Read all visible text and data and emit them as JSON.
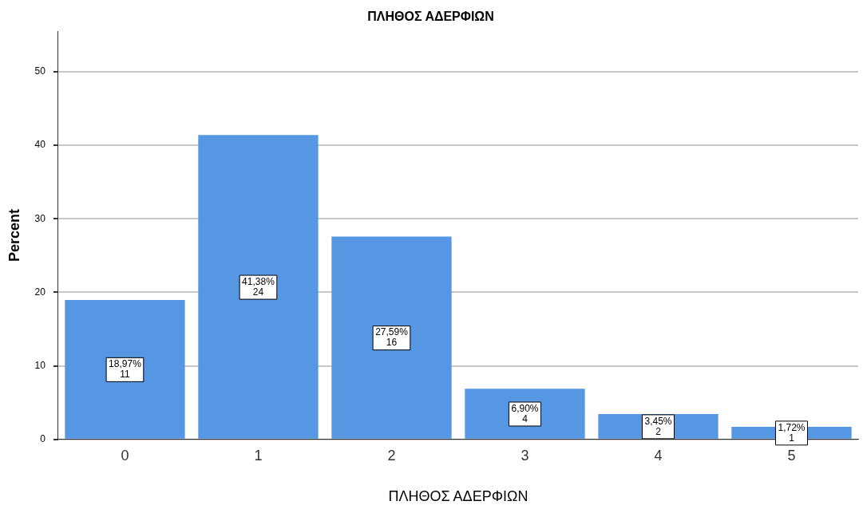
{
  "chart_data": {
    "type": "bar",
    "title": "ΠΛΗΘΟΣ ΑΔΕΡΦΙΩΝ",
    "xlabel": "ΠΛΗΘΟΣ ΑΔΕΡΦΙΩΝ",
    "ylabel": "Percent",
    "categories": [
      "0",
      "1",
      "2",
      "3",
      "4",
      "5"
    ],
    "values": [
      18.97,
      41.38,
      27.59,
      6.9,
      3.45,
      1.72
    ],
    "value_labels": [
      "18,97%\n11",
      "41,38%\n24",
      "27,59%\n16",
      "6,90%\n4",
      "3,45%\n2",
      "1,72%\n1"
    ],
    "color": "#5597e3",
    "ylim": [
      0,
      55.5
    ],
    "yticks": [
      0,
      10,
      20,
      30,
      40,
      50
    ],
    "grid": "y",
    "legend": false
  }
}
